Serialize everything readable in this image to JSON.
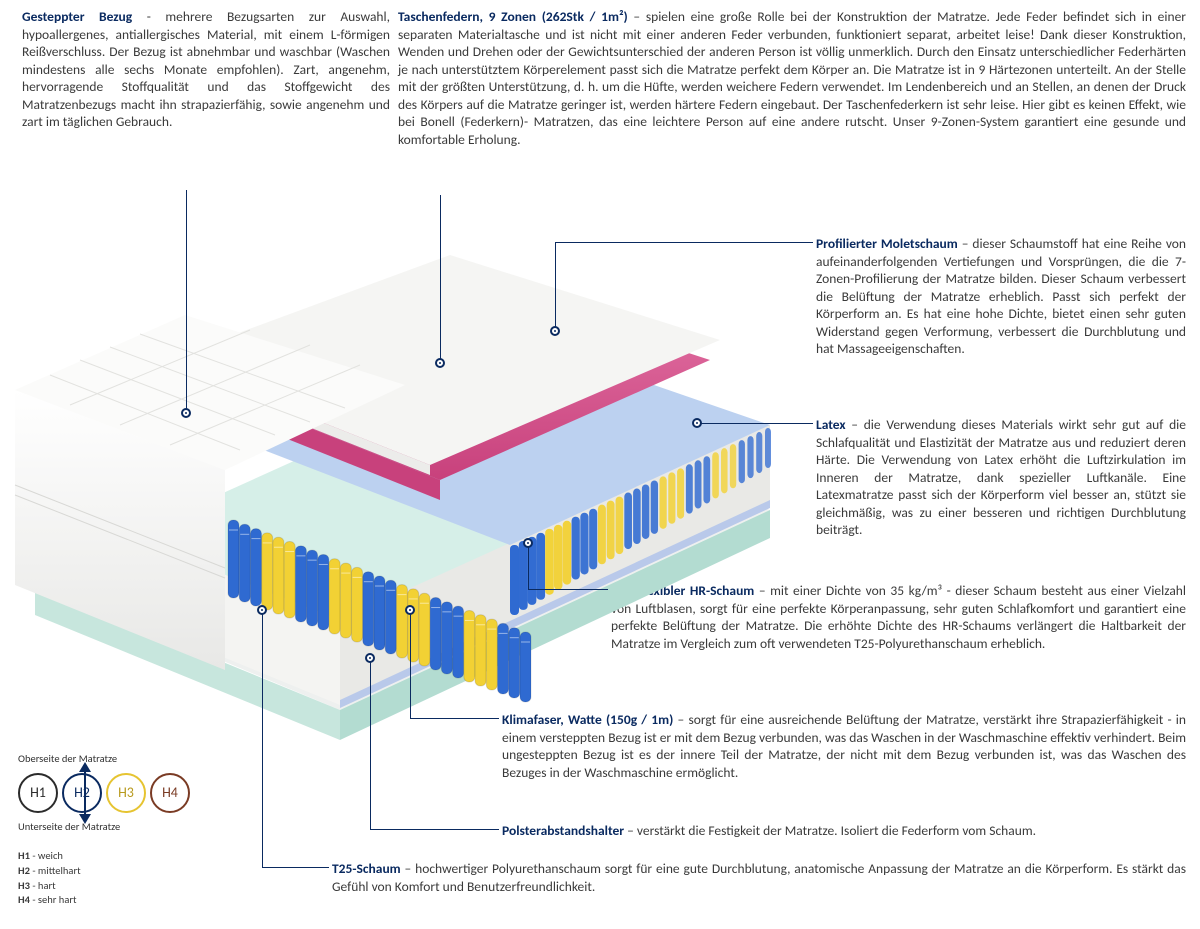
{
  "colors": {
    "heading": "#0a2a60",
    "text": "#3a3a3a",
    "point_border": "#0a2a60",
    "h1": "#2b2b2b",
    "h2": "#0a2a60",
    "h3": "#e6c431",
    "h4": "#7a3b24",
    "spring_blue": "#2f6ad1",
    "spring_yellow": "#f2d134",
    "foam_pink": "#d84f8f",
    "foam_white": "#f1f1f0",
    "foam_green": "#c7e6dd",
    "base_blue": "#b9c9ea"
  },
  "sections": {
    "gesteppter": {
      "title": "Gesteppter Bezug",
      "sep": " - ",
      "body": "mehrere Bezugsarten zur Auswahl, hypoallergenes, antiallergisches Material, mit einem L-förmigen Reißverschluss. Der Bezug ist abnehmbar und waschbar (Waschen mindestens alle sechs Monate empfohlen). Zart, angenehm, hervorragende Stoffqualität und das Stoffgewicht des Matratzenbezugs macht ihn strapazierfähig, sowie angenehm und zart im täglichen Gebrauch."
    },
    "taschenfedern": {
      "title": "Taschenfedern, 9 Zonen (262Stk / 1m²)",
      "sep": " – ",
      "body": "spielen eine große Rolle bei der Konstruktion der Matratze. Jede Feder befindet sich in einer separaten Materialtasche und ist nicht mit einer anderen Feder verbunden, funktioniert separat, arbeitet leise! Dank dieser Konstruktion, Wenden und Drehen oder der Gewichtsunterschied der anderen Person ist völlig unmerklich. Durch den Einsatz unterschiedlicher Federhärten je nach unterstütztem Körperelement passt sich die Matratze perfekt dem Körper an. Die Matratze ist in 9 Härtezonen unterteilt. An der Stelle mit der größten Unterstützung, d. h. um die Hüfte, werden weichere Federn verwendet. Im Lendenbereich und an Stellen, an denen der Druck des Körpers auf die Matratze geringer ist, werden härtere Federn eingebaut. Der Taschenfederkern ist sehr leise. Hier gibt es keinen Effekt, wie bei Bonell (Federkern)- Matratzen, das eine leichtere Person auf eine andere rutscht. Unser 9-Zonen-System garantiert eine gesunde und komfortable Erholung."
    },
    "moletschaum": {
      "title": "Profilierter Moletschaum",
      "sep": " – ",
      "body": "dieser Schaumstoff hat eine Reihe von aufeinanderfolgenden Vertiefungen und Vorsprüngen, die die 7-Zonen-Profilierung der Matratze bilden. Dieser Schaum verbessert die Belüftung der Matratze erheblich. Passt sich perfekt der Körperform an. Es hat eine hohe Dichte, bietet einen sehr guten Widerstand gegen Verformung, verbessert die Durchblutung und hat Massageeigenschaften."
    },
    "latex": {
      "title": "Latex",
      "sep": " – ",
      "body": "die Verwendung dieses Materials wirkt sehr gut auf die Schlafqualität und Elastizität der Matratze aus und reduziert deren Härte. Die Verwendung von Latex erhöht die Luftzirkulation im Inneren der Matratze, dank spezieller Luftkanäle. Eine Latexmatratze passt sich der Körperform viel besser an, stützt sie gleichmäßig, was zu einer besseren und richtigen Durchblutung beiträgt."
    },
    "hr_schaum": {
      "title": "Hochflexibler HR-Schaum",
      "sep": " – ",
      "body": "mit einer Dichte von 35 kg/m³ - dieser Schaum besteht aus einer Vielzahl von Luftblasen, sorgt für eine perfekte Körperanpassung, sehr guten Schlafkomfort und garantiert eine perfekte Belüftung der Matratze. Die erhöhte Dichte des HR-Schaums verlängert die Haltbarkeit der Matratze im Vergleich zum oft verwendeten T25-Polyurethanschaum erheblich."
    },
    "klimafaser": {
      "title": "Klimafaser, Watte (150g / 1m)",
      "sep": " – ",
      "body": "sorgt für eine ausreichende Belüftung der Matratze, verstärkt ihre Strapazierfähigkeit - in einem versteppten Bezug ist er mit dem Bezug verbunden, was das Waschen in der Waschmaschine effektiv verhindert. Beim ungesteppten Bezug ist es der innere Teil der Matratze, der nicht mit dem Bezug verbunden ist, was das Waschen des Bezuges in der Waschmaschine ermöglicht."
    },
    "polster": {
      "title": "Polsterabstandshalter",
      "sep": " – ",
      "body": "verstärkt die Festigkeit der Matratze. Isoliert die Federform vom Schaum."
    },
    "t25": {
      "title": "T25-Schaum",
      "sep": " – ",
      "body": "hochwertiger Polyurethanschaum sorgt für eine gute Durchblutung, anatomische Anpassung der Matratze an die Körperform. Es stärkt das Gefühl von Komfort und Benutzerfreundlichkeit."
    }
  },
  "legend": {
    "top_label": "Oberseite der Matratze",
    "bottom_label": "Unterseite der Matratze",
    "items": [
      {
        "code": "H1",
        "label": "weich"
      },
      {
        "code": "H2",
        "label": "mittelhart"
      },
      {
        "code": "H3",
        "label": "hart"
      },
      {
        "code": "H4",
        "label": "sehr hart"
      }
    ]
  }
}
